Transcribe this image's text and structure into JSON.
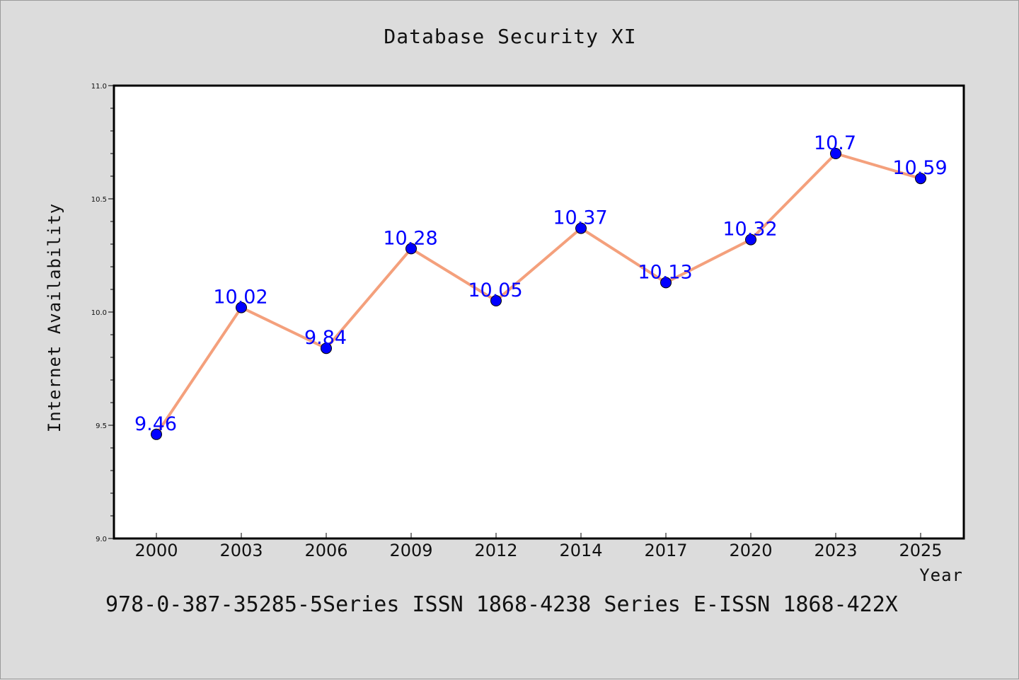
{
  "chart_data": {
    "type": "line",
    "title": "Database Security XI",
    "xlabel": "Year",
    "ylabel": "Internet Availability",
    "categories": [
      "2000",
      "2003",
      "2006",
      "2009",
      "2012",
      "2014",
      "2017",
      "2020",
      "2023",
      "2025"
    ],
    "series": [
      {
        "values": [
          9.46,
          10.02,
          9.84,
          10.28,
          10.05,
          10.37,
          10.13,
          10.32,
          10.7,
          10.59
        ]
      }
    ],
    "data_labels": [
      "9.46",
      "10.02",
      "9.84",
      "10.28",
      "10.05",
      "10.37",
      "10.13",
      "10.32",
      "10.7",
      "10.59"
    ],
    "ylim": [
      9.0,
      11.0
    ],
    "yticks": [
      "9.0",
      "9.5",
      "10.0",
      "10.5",
      "11.0"
    ],
    "grid": false,
    "legend": "none",
    "colors": {
      "line": "#f4a07c",
      "marker": "#0000ff",
      "label": "#0000ff",
      "background": "#dcdcdc"
    }
  },
  "footer": "978-0-387-35285-5Series ISSN 1868-4238 Series E-ISSN 1868-422X"
}
